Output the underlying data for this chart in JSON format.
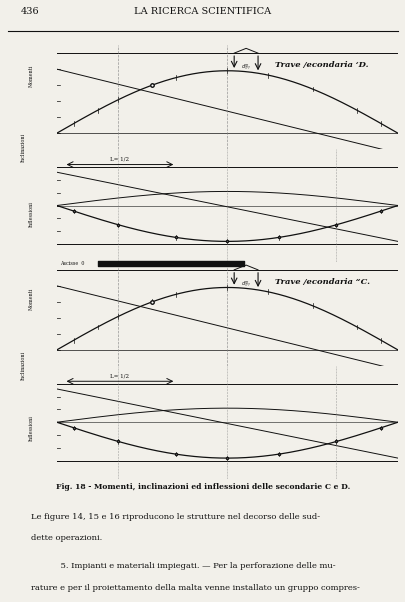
{
  "page_number": "436",
  "header_title": "LA RICERCA SCIENTIFICA",
  "fig_caption": "Fig. 18 - Momenti, inclinazioni ed inflessioni delle secondarie C e D.",
  "para1_line1": "Le figure 14, 15 e 16 riproducono le strutture nel decorso delle sud-",
  "para1_line2": "dette operazioni.",
  "para2_line1": "    5. Impianti e materiali impiegati. — Per la perforazione delle mu-",
  "para2_line2": "rature e per il proiettamento della malta venne installato un gruppo compres-",
  "label_D": "Trave /econdaria ‘D.",
  "label_C": "Trave /econdaria “C.",
  "bg_color": "#f2f0ea",
  "line_color": "#111111",
  "text_color": "#111111"
}
